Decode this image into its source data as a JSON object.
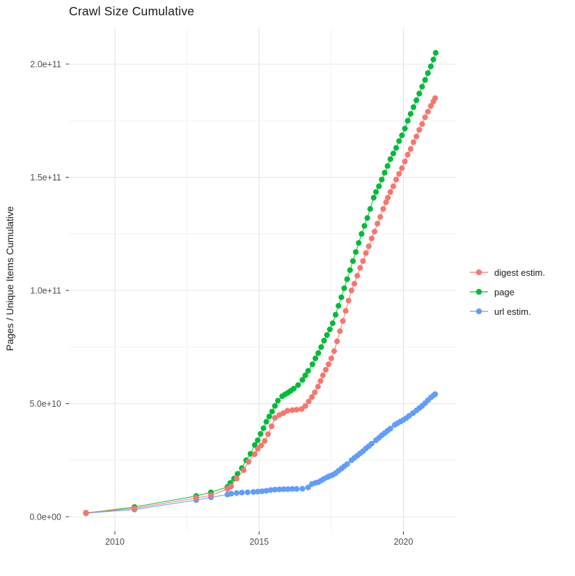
{
  "title": "Crawl Size Cumulative",
  "y_axis": {
    "title": "Pages / Unique Items Cumulative",
    "tick_labels": [
      "0.0e+00",
      "5.0e+10",
      "1.0e+11",
      "1.5e+11",
      "2.0e+11"
    ],
    "tick_values": [
      0,
      50000000000.0,
      100000000000.0,
      150000000000.0,
      200000000000.0
    ],
    "minor_values": [
      25000000000.0,
      75000000000.0,
      125000000000.0,
      175000000000.0
    ]
  },
  "x_axis": {
    "tick_labels": [
      "2010",
      "2015",
      "2020"
    ],
    "tick_values": [
      2010,
      2015,
      2020
    ],
    "minor_values": [
      2012.5,
      2017.5
    ]
  },
  "legend": {
    "position": "right",
    "items": [
      {
        "label": "digest estim.",
        "color": "#F8766D"
      },
      {
        "label": "page",
        "color": "#00BA38"
      },
      {
        "label": "url estim.",
        "color": "#619CFF"
      }
    ]
  },
  "style": {
    "background": "#FFFFFF",
    "grid_major_color": "#E4E4E4",
    "grid_minor_color": "#F1F1F1",
    "tick_mark_color": "#333333",
    "tick_label_color": "#4D4D4D",
    "text_color": "#1A1A1A"
  },
  "chart_data": {
    "type": "scatter",
    "title": "Crawl Size Cumulative",
    "xlabel": "",
    "ylabel": "Pages / Unique Items Cumulative",
    "xlim": [
      2008.4,
      2021.8
    ],
    "ylim": [
      0,
      216000000000.0
    ],
    "grid": true,
    "legend_position": "right",
    "series": [
      {
        "name": "digest estim.",
        "color": "#F8766D",
        "points": [
          [
            2009.0,
            1800000000.0
          ],
          [
            2010.68,
            3700000000.0
          ],
          [
            2012.82,
            8300000000.0
          ],
          [
            2013.33,
            9500000000.0
          ],
          [
            2013.9,
            12300000000.0
          ],
          [
            2014.03,
            13500000000.0
          ],
          [
            2014.22,
            16900000000.0
          ],
          [
            2014.46,
            20600000000.0
          ],
          [
            2014.63,
            24300000000.0
          ],
          [
            2014.85,
            27700000000.0
          ],
          [
            2014.95,
            30000000000.0
          ],
          [
            2015.07,
            31500000000.0
          ],
          [
            2015.19,
            33500000000.0
          ],
          [
            2015.31,
            36500000000.0
          ],
          [
            2015.43,
            40000000000.0
          ],
          [
            2015.55,
            43700000000.0
          ],
          [
            2015.7,
            45000000000.0
          ],
          [
            2015.84,
            45800000000.0
          ],
          [
            2015.98,
            46800000000.0
          ],
          [
            2016.15,
            47100000000.0
          ],
          [
            2016.3,
            47300000000.0
          ],
          [
            2016.47,
            47600000000.0
          ],
          [
            2016.6,
            49000000000.0
          ],
          [
            2016.72,
            51000000000.0
          ],
          [
            2016.83,
            52900000000.0
          ],
          [
            2016.93,
            55000000000.0
          ],
          [
            2017.04,
            57500000000.0
          ],
          [
            2017.13,
            60000000000.0
          ],
          [
            2017.21,
            62500000000.0
          ],
          [
            2017.31,
            65000000000.0
          ],
          [
            2017.41,
            67400000000.0
          ],
          [
            2017.5,
            70000000000.0
          ],
          [
            2017.6,
            73200000000.0
          ],
          [
            2017.7,
            77500000000.0
          ],
          [
            2017.8,
            82000000000.0
          ],
          [
            2017.9,
            86500000000.0
          ],
          [
            2018.0,
            91000000000.0
          ],
          [
            2018.1,
            95500000000.0
          ],
          [
            2018.2,
            100000000000.0
          ],
          [
            2018.3,
            103000000000.0
          ],
          [
            2018.4,
            106500000000.0
          ],
          [
            2018.5,
            110000000000.0
          ],
          [
            2018.6,
            113000000000.0
          ],
          [
            2018.7,
            116500000000.0
          ],
          [
            2018.8,
            119500000000.0
          ],
          [
            2018.9,
            123000000000.0
          ],
          [
            2019.0,
            126000000000.0
          ],
          [
            2019.1,
            129500000000.0
          ],
          [
            2019.2,
            132500000000.0
          ],
          [
            2019.3,
            136000000000.0
          ],
          [
            2019.4,
            139000000000.0
          ],
          [
            2019.46,
            141000000000.0
          ],
          [
            2019.55,
            143500000000.0
          ],
          [
            2019.65,
            146000000000.0
          ],
          [
            2019.75,
            149000000000.0
          ],
          [
            2019.85,
            151500000000.0
          ],
          [
            2019.95,
            154000000000.0
          ],
          [
            2020.05,
            157000000000.0
          ],
          [
            2020.15,
            160000000000.0
          ],
          [
            2020.25,
            162500000000.0
          ],
          [
            2020.35,
            165500000000.0
          ],
          [
            2020.45,
            168000000000.0
          ],
          [
            2020.55,
            171000000000.0
          ],
          [
            2020.65,
            173500000000.0
          ],
          [
            2020.75,
            176500000000.0
          ],
          [
            2020.85,
            179000000000.0
          ],
          [
            2020.95,
            181500000000.0
          ],
          [
            2021.04,
            183500000000.0
          ],
          [
            2021.1,
            185000000000.0
          ]
        ]
      },
      {
        "name": "page",
        "color": "#00BA38",
        "points": [
          [
            2009.0,
            1700000000.0
          ],
          [
            2010.68,
            4300000000.0
          ],
          [
            2012.82,
            9200000000.0
          ],
          [
            2013.33,
            10800000000.0
          ],
          [
            2013.9,
            13200000000.0
          ],
          [
            2014.0,
            15000000000.0
          ],
          [
            2014.13,
            16900000000.0
          ],
          [
            2014.25,
            19000000000.0
          ],
          [
            2014.4,
            21500000000.0
          ],
          [
            2014.55,
            25000000000.0
          ],
          [
            2014.7,
            27800000000.0
          ],
          [
            2014.85,
            31700000000.0
          ],
          [
            2014.95,
            33800000000.0
          ],
          [
            2015.05,
            36600000000.0
          ],
          [
            2015.15,
            39100000000.0
          ],
          [
            2015.25,
            42000000000.0
          ],
          [
            2015.35,
            44300000000.0
          ],
          [
            2015.45,
            46500000000.0
          ],
          [
            2015.55,
            49000000000.0
          ],
          [
            2015.65,
            51300000000.0
          ],
          [
            2015.8,
            53300000000.0
          ],
          [
            2015.9,
            54100000000.0
          ],
          [
            2016.0,
            54800000000.0
          ],
          [
            2016.1,
            55700000000.0
          ],
          [
            2016.2,
            56600000000.0
          ],
          [
            2016.35,
            58200000000.0
          ],
          [
            2016.5,
            60500000000.0
          ],
          [
            2016.6,
            62500000000.0
          ],
          [
            2016.7,
            64500000000.0
          ],
          [
            2016.85,
            67400000000.0
          ],
          [
            2016.95,
            70000000000.0
          ],
          [
            2017.05,
            72300000000.0
          ],
          [
            2017.15,
            75000000000.0
          ],
          [
            2017.25,
            77800000000.0
          ],
          [
            2017.35,
            80300000000.0
          ],
          [
            2017.45,
            82800000000.0
          ],
          [
            2017.55,
            85500000000.0
          ],
          [
            2017.65,
            89300000000.0
          ],
          [
            2017.75,
            93200000000.0
          ],
          [
            2017.85,
            97000000000.0
          ],
          [
            2017.95,
            101000000000.0
          ],
          [
            2018.05,
            105000000000.0
          ],
          [
            2018.15,
            109000000000.0
          ],
          [
            2018.25,
            113000000000.0
          ],
          [
            2018.35,
            117000000000.0
          ],
          [
            2018.45,
            121000000000.0
          ],
          [
            2018.55,
            125000000000.0
          ],
          [
            2018.65,
            128500000000.0
          ],
          [
            2018.75,
            132000000000.0
          ],
          [
            2018.85,
            136000000000.0
          ],
          [
            2018.97,
            141000000000.0
          ],
          [
            2019.05,
            143500000000.0
          ],
          [
            2019.15,
            146000000000.0
          ],
          [
            2019.25,
            149000000000.0
          ],
          [
            2019.35,
            152000000000.0
          ],
          [
            2019.45,
            155000000000.0
          ],
          [
            2019.55,
            158000000000.0
          ],
          [
            2019.65,
            160500000000.0
          ],
          [
            2019.75,
            163000000000.0
          ],
          [
            2019.85,
            166000000000.0
          ],
          [
            2019.95,
            168500000000.0
          ],
          [
            2020.05,
            171500000000.0
          ],
          [
            2020.15,
            175000000000.0
          ],
          [
            2020.25,
            178000000000.0
          ],
          [
            2020.35,
            181000000000.0
          ],
          [
            2020.45,
            184000000000.0
          ],
          [
            2020.55,
            187000000000.0
          ],
          [
            2020.65,
            190000000000.0
          ],
          [
            2020.75,
            193000000000.0
          ],
          [
            2020.85,
            196000000000.0
          ],
          [
            2020.95,
            199000000000.0
          ],
          [
            2021.04,
            202000000000.0
          ],
          [
            2021.12,
            205000000000.0
          ]
        ]
      },
      {
        "name": "url estim.",
        "color": "#619CFF",
        "points": [
          [
            2009.0,
            1600000000.0
          ],
          [
            2010.68,
            3200000000.0
          ],
          [
            2012.82,
            7400000000.0
          ],
          [
            2013.33,
            8600000000.0
          ],
          [
            2013.9,
            9800000000.0
          ],
          [
            2014.03,
            10200000000.0
          ],
          [
            2014.22,
            10500000000.0
          ],
          [
            2014.4,
            10700000000.0
          ],
          [
            2014.6,
            10800000000.0
          ],
          [
            2014.8,
            11000000000.0
          ],
          [
            2014.95,
            11100000000.0
          ],
          [
            2015.1,
            11300000000.0
          ],
          [
            2015.25,
            11500000000.0
          ],
          [
            2015.4,
            11800000000.0
          ],
          [
            2015.55,
            12000000000.0
          ],
          [
            2015.7,
            12100000000.0
          ],
          [
            2015.85,
            12200000000.0
          ],
          [
            2016.0,
            12200000000.0
          ],
          [
            2016.15,
            12300000000.0
          ],
          [
            2016.3,
            12300000000.0
          ],
          [
            2016.5,
            12400000000.0
          ],
          [
            2016.7,
            13000000000.0
          ],
          [
            2016.83,
            14500000000.0
          ],
          [
            2016.95,
            15000000000.0
          ],
          [
            2017.05,
            15300000000.0
          ],
          [
            2017.15,
            16000000000.0
          ],
          [
            2017.25,
            16800000000.0
          ],
          [
            2017.36,
            17500000000.0
          ],
          [
            2017.45,
            18000000000.0
          ],
          [
            2017.55,
            18500000000.0
          ],
          [
            2017.65,
            19300000000.0
          ],
          [
            2017.75,
            20300000000.0
          ],
          [
            2017.85,
            21300000000.0
          ],
          [
            2017.95,
            22300000000.0
          ],
          [
            2018.05,
            23300000000.0
          ],
          [
            2018.2,
            25000000000.0
          ],
          [
            2018.3,
            26000000000.0
          ],
          [
            2018.4,
            27000000000.0
          ],
          [
            2018.5,
            28000000000.0
          ],
          [
            2018.6,
            29000000000.0
          ],
          [
            2018.7,
            30200000000.0
          ],
          [
            2018.8,
            31200000000.0
          ],
          [
            2018.9,
            32300000000.0
          ],
          [
            2019.05,
            33800000000.0
          ],
          [
            2019.15,
            34900000000.0
          ],
          [
            2019.25,
            36000000000.0
          ],
          [
            2019.35,
            37000000000.0
          ],
          [
            2019.45,
            38000000000.0
          ],
          [
            2019.55,
            39000000000.0
          ],
          [
            2019.7,
            40600000000.0
          ],
          [
            2019.8,
            41400000000.0
          ],
          [
            2019.9,
            42100000000.0
          ],
          [
            2020.0,
            42800000000.0
          ],
          [
            2020.1,
            43600000000.0
          ],
          [
            2020.2,
            44600000000.0
          ],
          [
            2020.33,
            45800000000.0
          ],
          [
            2020.45,
            47000000000.0
          ],
          [
            2020.55,
            48000000000.0
          ],
          [
            2020.65,
            49000000000.0
          ],
          [
            2020.75,
            50200000000.0
          ],
          [
            2020.85,
            51500000000.0
          ],
          [
            2020.95,
            52700000000.0
          ],
          [
            2021.04,
            53600000000.0
          ],
          [
            2021.1,
            54200000000.0
          ]
        ]
      }
    ]
  }
}
